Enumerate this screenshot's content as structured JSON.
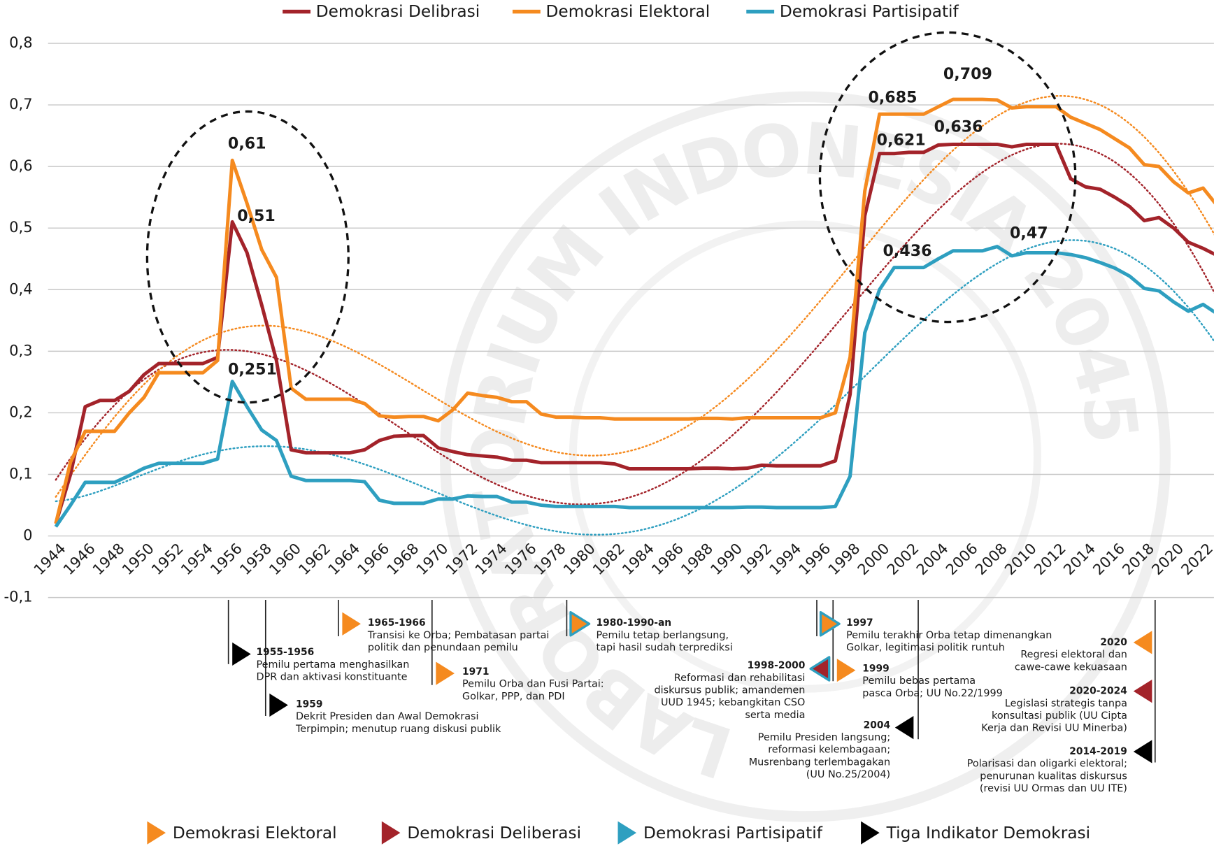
{
  "chart_data": {
    "type": "line",
    "watermark": "LABORATORIUM INDONESIA 2045",
    "x": [
      1944,
      1945,
      1946,
      1947,
      1948,
      1949,
      1950,
      1951,
      1952,
      1953,
      1954,
      1955,
      1956,
      1957,
      1958,
      1959,
      1960,
      1961,
      1962,
      1963,
      1964,
      1965,
      1966,
      1967,
      1968,
      1969,
      1970,
      1971,
      1972,
      1973,
      1974,
      1975,
      1976,
      1977,
      1978,
      1979,
      1980,
      1981,
      1982,
      1983,
      1984,
      1985,
      1986,
      1987,
      1988,
      1989,
      1990,
      1991,
      1992,
      1993,
      1994,
      1995,
      1996,
      1997,
      1998,
      1999,
      2000,
      2001,
      2002,
      2003,
      2004,
      2005,
      2006,
      2007,
      2008,
      2009,
      2010,
      2011,
      2012,
      2013,
      2014,
      2015,
      2016,
      2017,
      2018,
      2019,
      2020,
      2021,
      2022,
      2023
    ],
    "xlim": [
      1944,
      2023
    ],
    "xticks": [
      1944,
      1946,
      1948,
      1950,
      1952,
      1954,
      1956,
      1958,
      1960,
      1962,
      1964,
      1966,
      1968,
      1970,
      1972,
      1974,
      1976,
      1978,
      1980,
      1982,
      1984,
      1986,
      1988,
      1990,
      1992,
      1994,
      1996,
      1998,
      2000,
      2002,
      2004,
      2006,
      2008,
      2010,
      2012,
      2014,
      2016,
      2018,
      2020,
      2022
    ],
    "ylim": [
      -0.1,
      0.8
    ],
    "yticks": [
      {
        "value": -0.1,
        "label": "-0,1"
      },
      0,
      {
        "value": 0.1,
        "label": "0,1"
      },
      {
        "value": 0.2,
        "label": "0,2"
      },
      {
        "value": 0.3,
        "label": "0,3"
      },
      {
        "value": 0.4,
        "label": "0,4"
      },
      {
        "value": 0.5,
        "label": "0,5"
      },
      {
        "value": 0.6,
        "label": "0,6"
      },
      {
        "value": 0.7,
        "label": "0,7"
      },
      {
        "value": 0.8,
        "label": "0,8"
      }
    ],
    "grid": true,
    "trendline": "polynomial",
    "legend": "top",
    "series": [
      {
        "name": "Demokrasi Delibrasi",
        "color": "#a3232a",
        "values": [
          0.02,
          0.1,
          0.21,
          0.22,
          0.22,
          0.235,
          0.262,
          0.28,
          0.28,
          0.28,
          0.28,
          0.29,
          0.51,
          0.46,
          0.375,
          0.285,
          0.14,
          0.135,
          0.135,
          0.135,
          0.135,
          0.14,
          0.155,
          0.162,
          0.163,
          0.163,
          0.143,
          0.137,
          0.132,
          0.13,
          0.128,
          0.123,
          0.123,
          0.119,
          0.119,
          0.119,
          0.119,
          0.119,
          0.117,
          0.109,
          0.109,
          0.109,
          0.109,
          0.109,
          0.11,
          0.11,
          0.109,
          0.11,
          0.115,
          0.114,
          0.114,
          0.114,
          0.114,
          0.122,
          0.23,
          0.52,
          0.621,
          0.621,
          0.623,
          0.623,
          0.635,
          0.636,
          0.636,
          0.636,
          0.636,
          0.632,
          0.636,
          0.636,
          0.636,
          0.58,
          0.567,
          0.563,
          0.55,
          0.535,
          0.512,
          0.517,
          0.5,
          0.477,
          0.467,
          0.455
        ],
        "value_labels": [
          null,
          null,
          null,
          null,
          null,
          null,
          null,
          null,
          null,
          null,
          null,
          null,
          "0,51",
          null,
          null,
          null,
          null,
          null,
          null,
          null,
          null,
          null,
          null,
          null,
          null,
          null,
          null,
          null,
          null,
          null,
          null,
          null,
          null,
          null,
          null,
          null,
          null,
          null,
          null,
          null,
          null,
          null,
          null,
          null,
          null,
          null,
          null,
          null,
          null,
          null,
          null,
          null,
          null,
          null,
          null,
          null,
          null,
          "0,621",
          null,
          null,
          null,
          "0,636",
          null,
          null,
          null,
          null,
          null,
          null,
          null,
          null,
          null,
          null,
          null,
          null,
          null,
          null,
          null,
          null,
          null,
          null
        ]
      },
      {
        "name": "Demokrasi Elektoral",
        "color": "#f58a1f",
        "values": [
          0.02,
          0.12,
          0.17,
          0.17,
          0.17,
          0.2,
          0.225,
          0.265,
          0.265,
          0.265,
          0.265,
          0.285,
          0.61,
          0.54,
          0.465,
          0.42,
          0.24,
          0.222,
          0.222,
          0.222,
          0.222,
          0.215,
          0.195,
          0.193,
          0.194,
          0.194,
          0.187,
          0.205,
          0.232,
          0.228,
          0.225,
          0.218,
          0.218,
          0.198,
          0.193,
          0.193,
          0.192,
          0.192,
          0.19,
          0.19,
          0.19,
          0.19,
          0.19,
          0.19,
          0.191,
          0.191,
          0.19,
          0.192,
          0.192,
          0.192,
          0.192,
          0.192,
          0.192,
          0.2,
          0.29,
          0.56,
          0.685,
          0.685,
          0.685,
          0.685,
          0.697,
          0.709,
          0.709,
          0.709,
          0.708,
          0.695,
          0.697,
          0.697,
          0.697,
          0.68,
          0.67,
          0.66,
          0.645,
          0.63,
          0.603,
          0.6,
          0.575,
          0.557,
          0.565,
          0.535
        ],
        "value_labels": [
          null,
          null,
          null,
          null,
          null,
          null,
          null,
          null,
          null,
          null,
          null,
          null,
          "0,61",
          null,
          null,
          null,
          null,
          null,
          null,
          null,
          null,
          null,
          null,
          null,
          null,
          null,
          null,
          null,
          null,
          null,
          null,
          null,
          null,
          null,
          null,
          null,
          null,
          null,
          null,
          null,
          null,
          null,
          null,
          null,
          null,
          null,
          null,
          null,
          null,
          null,
          null,
          null,
          null,
          null,
          null,
          null,
          null,
          "0,685",
          null,
          null,
          null,
          null,
          "0,709",
          null,
          null,
          null,
          null,
          null,
          null,
          null,
          null,
          null,
          null,
          null,
          null,
          null,
          null,
          null,
          null,
          null
        ]
      },
      {
        "name": "Demokrasi Partisipatif",
        "color": "#2e9fc0",
        "values": [
          0.015,
          0.05,
          0.087,
          0.087,
          0.087,
          0.098,
          0.11,
          0.118,
          0.118,
          0.118,
          0.118,
          0.125,
          0.251,
          0.21,
          0.172,
          0.155,
          0.097,
          0.09,
          0.09,
          0.09,
          0.09,
          0.088,
          0.058,
          0.053,
          0.053,
          0.053,
          0.06,
          0.06,
          0.065,
          0.064,
          0.064,
          0.055,
          0.055,
          0.05,
          0.048,
          0.048,
          0.048,
          0.048,
          0.048,
          0.046,
          0.046,
          0.046,
          0.046,
          0.046,
          0.046,
          0.046,
          0.046,
          0.047,
          0.047,
          0.046,
          0.046,
          0.046,
          0.046,
          0.048,
          0.097,
          0.33,
          0.4,
          0.436,
          0.436,
          0.436,
          0.45,
          0.463,
          0.463,
          0.463,
          0.47,
          0.455,
          0.46,
          0.46,
          0.46,
          0.457,
          0.452,
          0.444,
          0.435,
          0.422,
          0.402,
          0.398,
          0.38,
          0.365,
          0.376,
          0.36
        ],
        "value_labels": [
          null,
          null,
          null,
          null,
          null,
          null,
          null,
          null,
          null,
          null,
          null,
          null,
          "0,251",
          null,
          null,
          null,
          null,
          null,
          null,
          null,
          null,
          null,
          null,
          null,
          null,
          null,
          null,
          null,
          null,
          null,
          null,
          null,
          null,
          null,
          null,
          null,
          null,
          null,
          null,
          null,
          null,
          null,
          null,
          null,
          null,
          null,
          null,
          null,
          null,
          null,
          null,
          null,
          null,
          null,
          null,
          null,
          null,
          null,
          "0,436",
          null,
          null,
          null,
          null,
          null,
          "0,47",
          null,
          null,
          null,
          null,
          null,
          null,
          null,
          null,
          null,
          null,
          null,
          null,
          null,
          null,
          null
        ]
      }
    ],
    "events": [
      {
        "period": "1955-1956",
        "color": "#000000",
        "lines": [
          "Pemilu pertama menghasilkan",
          "DPR dan aktivasi konstituante"
        ]
      },
      {
        "period": "1959",
        "color": "#000000",
        "lines": [
          "Dekrit Presiden dan Awal Demokrasi",
          "Terpimpin; menutup ruang diskusi publik"
        ]
      },
      {
        "period": "1965-1966",
        "color": "#f58a1f",
        "lines": [
          "Transisi ke Orba; Pembatasan partai",
          "politik dan penundaan pemilu"
        ]
      },
      {
        "period": "1971",
        "color": "#f58a1f",
        "lines": [
          "Pemilu Orba dan Fusi Partai:",
          "Golkar, PPP, dan PDI"
        ]
      },
      {
        "period": "1980-1990-an",
        "color": "#f58a1f",
        "outline": "#2e9fc0",
        "lines": [
          "Pemilu tetap berlangsung,",
          "tapi hasil sudah terprediksi"
        ]
      },
      {
        "period": "1997",
        "color": "#f58a1f",
        "outline": "#2e9fc0",
        "lines": [
          "Pemilu terakhir Orba tetap dimenangkan",
          "Golkar, legitimasi politik runtuh"
        ]
      },
      {
        "period": "1998-2000",
        "color": "#a3232a",
        "outline": "#2e9fc0",
        "lines": [
          "Reformasi dan rehabilitasi",
          "diskursus publik; amandemen",
          "UUD 1945; kebangkitan CSO",
          "serta media"
        ]
      },
      {
        "period": "1999",
        "color": "#f58a1f",
        "lines": [
          "Pemilu bebas pertama",
          "pasca Orba; UU No.22/1999"
        ]
      },
      {
        "period": "2004",
        "color": "#000000",
        "lines": [
          "Pemilu Presiden langsung;",
          "reformasi kelembagaan;",
          "Musrenbang terlembagakan",
          "(UU No.25/2004)"
        ]
      },
      {
        "period": "2020",
        "color": "#f58a1f",
        "lines": [
          "Regresi elektoral dan",
          "cawe-cawe kekuasaan"
        ]
      },
      {
        "period": "2020-2024",
        "color": "#a3232a",
        "lines": [
          "Legislasi strategis tanpa",
          "konsultasi publik (UU Cipta",
          "Kerja dan Revisi UU Minerba)"
        ]
      },
      {
        "period": "2014-2019",
        "color": "#000000",
        "lines": [
          "Polarisasi dan oligarki elektoral;",
          "penurunan kualitas diskursus",
          "(revisi UU Ormas dan UU ITE)"
        ]
      }
    ],
    "event_legend": [
      {
        "name": "Demokrasi Elektoral",
        "color": "#f58a1f"
      },
      {
        "name": "Demokrasi Deliberasi",
        "color": "#a3232a"
      },
      {
        "name": "Demokrasi Partisipatif",
        "color": "#2e9fc0"
      },
      {
        "name": "Tiga Indikator Demokrasi",
        "color": "#000000"
      }
    ]
  }
}
